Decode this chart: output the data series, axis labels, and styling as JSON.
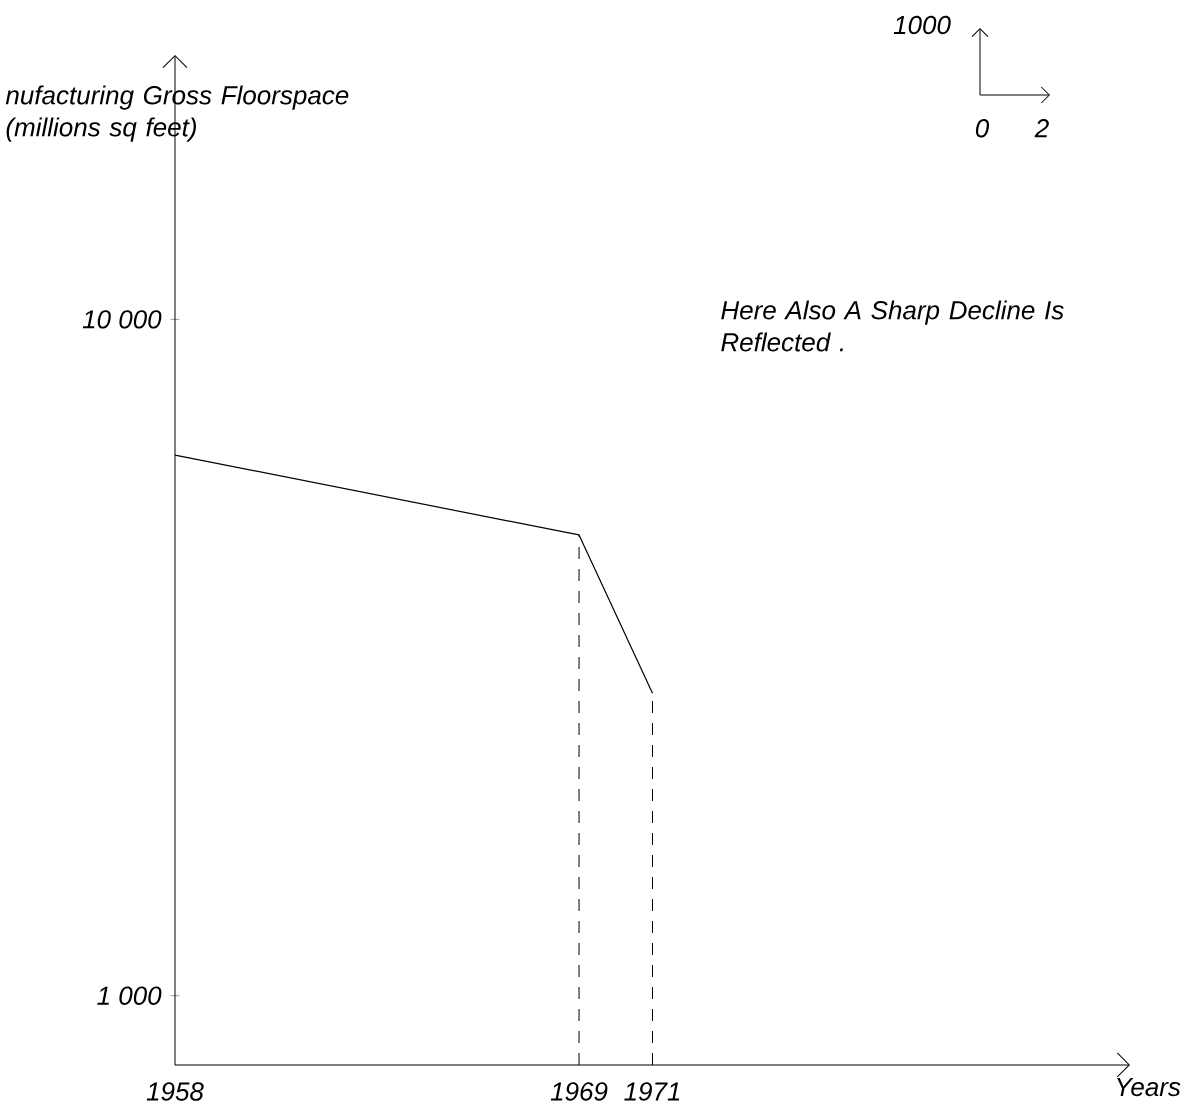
{
  "chart_data": {
    "type": "line",
    "ylabel": "nufacturing Gross Floorspace (millions sq feet)",
    "xlabel": "Years",
    "x": [
      1958,
      1969,
      1971
    ],
    "series": [
      {
        "color": "#000000",
        "values": [
          6300,
          4800,
          2800
        ]
      }
    ],
    "log": "y",
    "xlim": [
      1958,
      1984
    ],
    "ylim": [
      790,
      24600
    ],
    "xticks": [
      1958,
      1969,
      1971
    ],
    "yticks": [
      {
        "value": 1000,
        "label": "1 000"
      },
      {
        "value": 10000,
        "label": "10 000"
      }
    ],
    "ref_lines": [
      {
        "axis": "x",
        "value": 1969,
        "line_style": "dashed"
      },
      {
        "axis": "x",
        "value": 1971,
        "line_style": "dashed"
      }
    ],
    "annotations": [
      "Here Also A Sharp Decline Is Reflected .",
      "1000",
      "0",
      "2"
    ]
  }
}
